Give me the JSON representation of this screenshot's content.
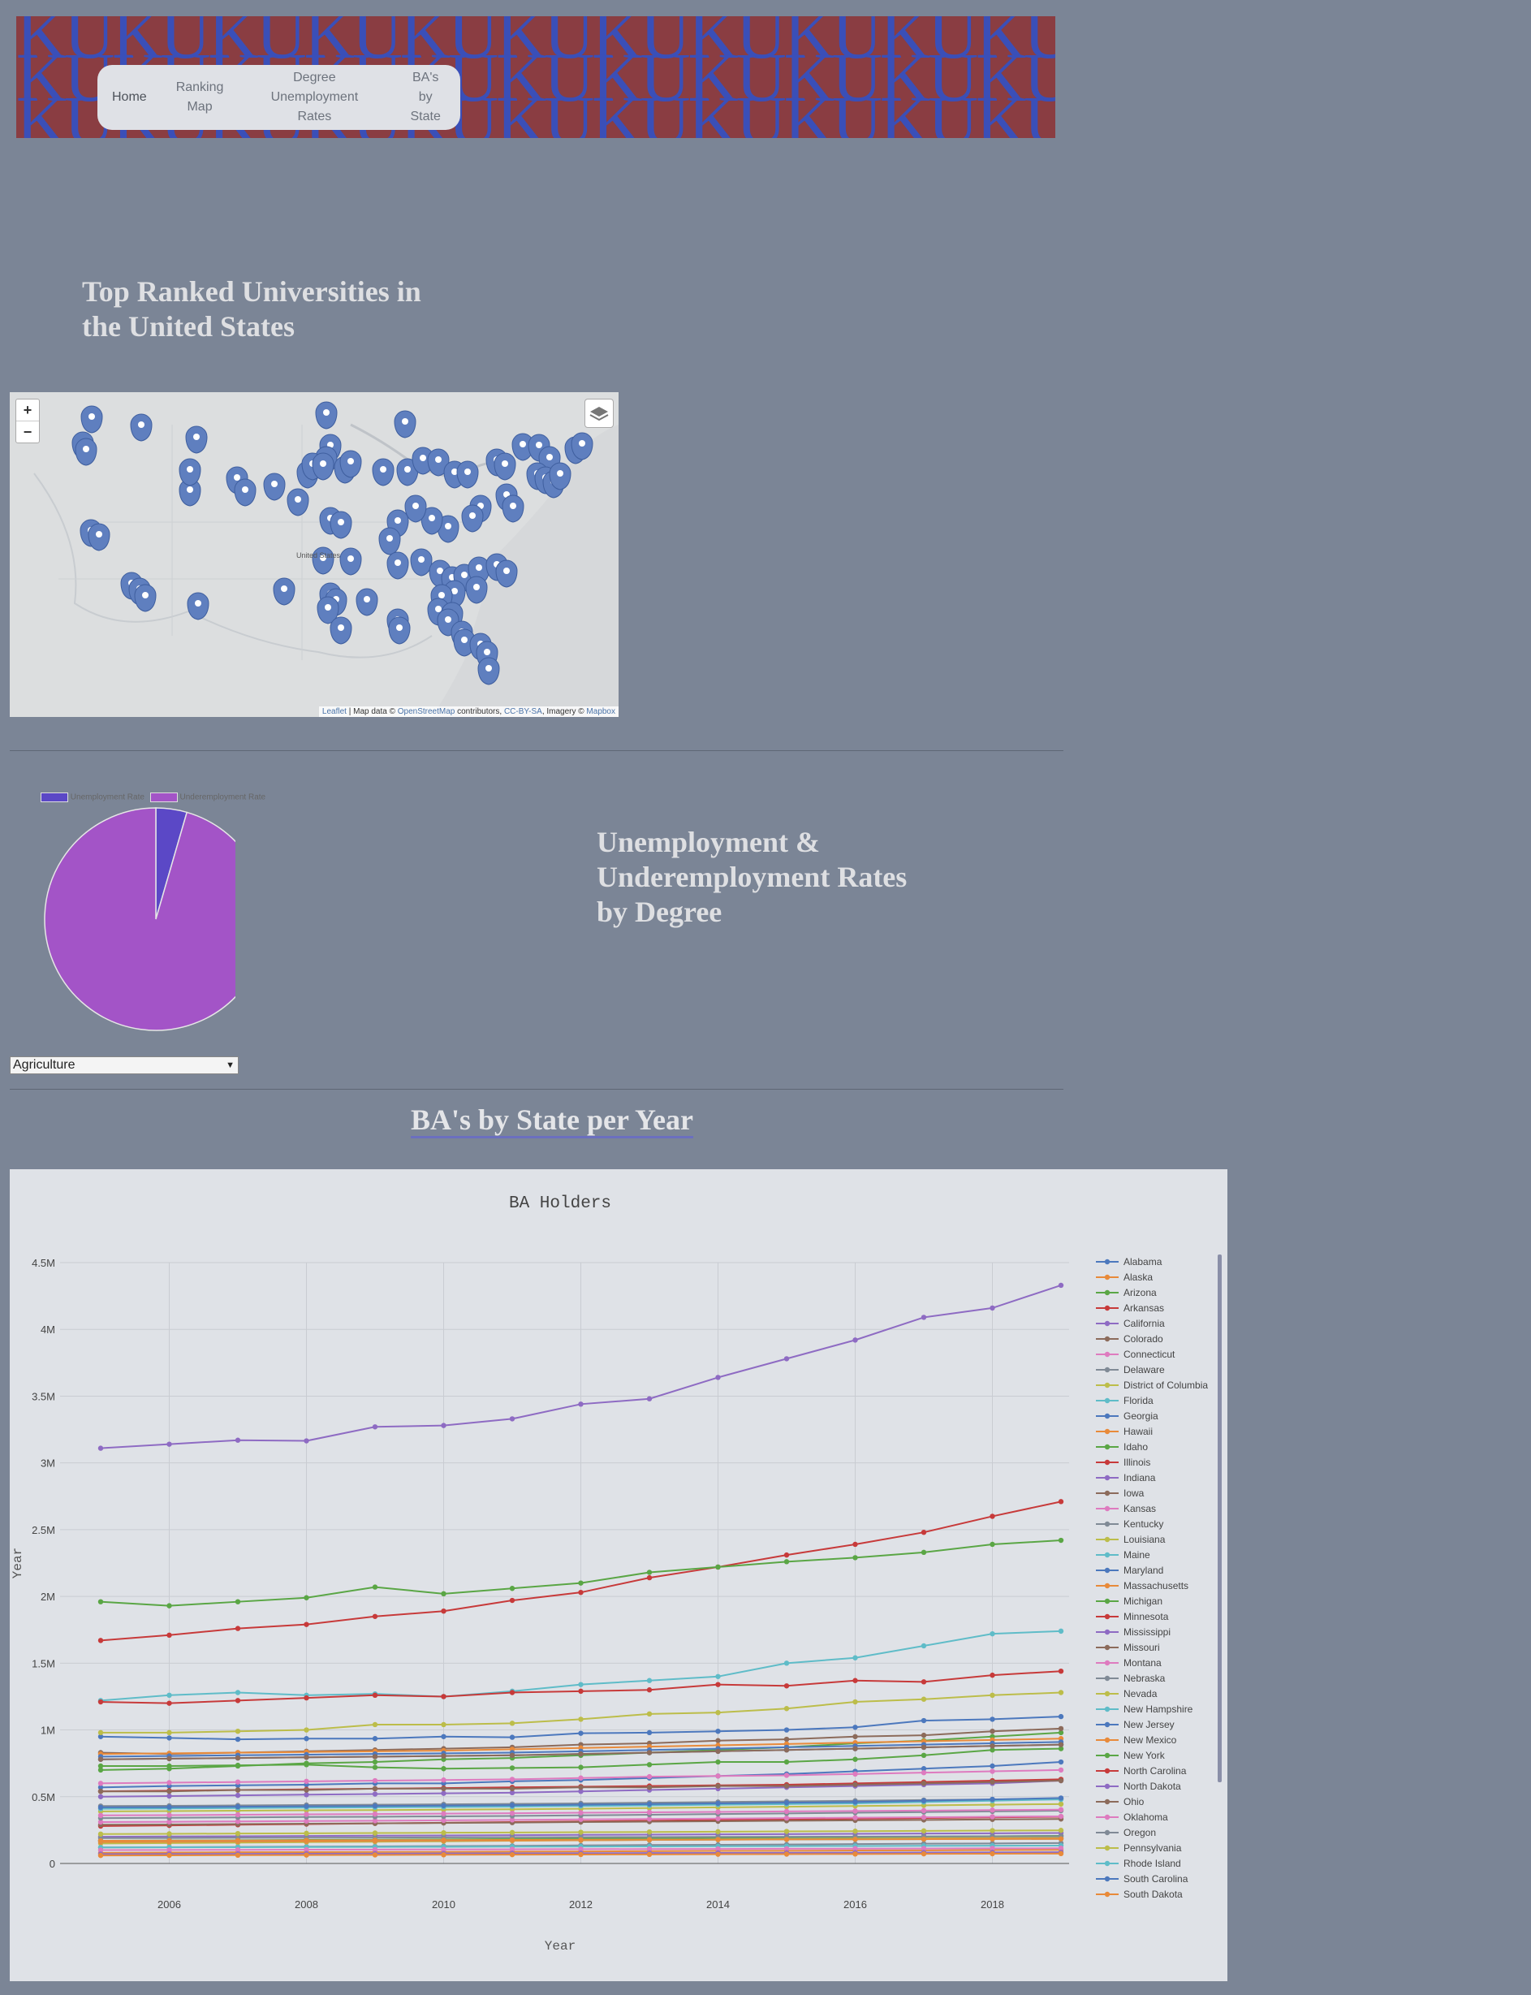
{
  "banner": {
    "pattern_text": "KUKUKUKUKUKUKUKUKUKUKUKUKUKUKUKUKUKUKUKUKUKUKUKU"
  },
  "nav": {
    "items": [
      {
        "line1": "Home",
        "line2": ""
      },
      {
        "line1": "Ranking",
        "line2": "Map"
      },
      {
        "line1": "Degree Unemployment",
        "line2": "Rates"
      },
      {
        "line1": "BA's by",
        "line2": "State"
      }
    ]
  },
  "ranking": {
    "title_line1": "Top Ranked Universities in",
    "title_line2": "the United States"
  },
  "map": {
    "zoom_in": "+",
    "zoom_out": "−",
    "label_country": "United States",
    "attribution": {
      "leaflet": "Leaflet",
      "text1": " | Map data © ",
      "osm": "OpenStreetMap",
      "text2": " contributors, ",
      "ccbysa": "CC-BY-SA",
      "text3": ", Imagery © ",
      "mapbox": "Mapbox"
    }
  },
  "unemployment": {
    "title_line1": "Unemployment &",
    "title_line2": "Underemployment Rates",
    "title_line3": "by Degree",
    "legend": [
      "Unemployment Rate",
      "Underemployment Rate"
    ],
    "select_value": "Agriculture"
  },
  "bas": {
    "title": "BA's by State per Year"
  },
  "colors": {
    "unemp": "#5b48c6",
    "underemp": "#a354c7"
  },
  "chart_data": [
    {
      "type": "pie",
      "categories": [
        "Unemployment Rate",
        "Underemployment Rate"
      ],
      "values": [
        4.5,
        95.5
      ]
    },
    {
      "type": "line",
      "title": "BA Holders",
      "xlabel": "Year",
      "ylabel": "Year",
      "xlim": [
        2005,
        2019
      ],
      "ylim": [
        0,
        4500000
      ],
      "x_ticks": [
        2006,
        2008,
        2010,
        2012,
        2014,
        2016,
        2018
      ],
      "y_ticks": [
        0,
        500000,
        1000000,
        1500000,
        2000000,
        2500000,
        3000000,
        3500000,
        4000000,
        4500000
      ],
      "y_tick_labels": [
        "0",
        "0.5M",
        "1M",
        "1.5M",
        "2M",
        "2.5M",
        "3M",
        "3.5M",
        "4M",
        "4.5M"
      ],
      "legend": "right",
      "x": [
        2005,
        2006,
        2007,
        2008,
        2009,
        2010,
        2011,
        2012,
        2013,
        2014,
        2015,
        2016,
        2017,
        2018,
        2019
      ],
      "series": [
        {
          "name": "Alabama",
          "values": [
            570000,
            580000,
            585000,
            590000,
            600000,
            600000,
            615000,
            625000,
            640000,
            655000,
            670000,
            690000,
            710000,
            730000,
            760000
          ]
        },
        {
          "name": "Alaska",
          "values": [
            80000,
            82000,
            84000,
            85000,
            86000,
            87000,
            89000,
            90000,
            92000,
            94000,
            95000,
            97000,
            98000,
            100000,
            102000
          ]
        },
        {
          "name": "Arizona",
          "values": [
            700000,
            710000,
            730000,
            750000,
            760000,
            780000,
            790000,
            810000,
            830000,
            850000,
            870000,
            900000,
            920000,
            950000,
            980000
          ]
        },
        {
          "name": "Arkansas",
          "values": [
            280000,
            285000,
            290000,
            295000,
            300000,
            305000,
            310000,
            315000,
            320000,
            325000,
            330000,
            335000,
            340000,
            345000,
            350000
          ]
        },
        {
          "name": "California",
          "values": [
            3110000,
            3140000,
            3170000,
            3165000,
            3270000,
            3280000,
            3330000,
            3440000,
            3480000,
            3640000,
            3780000,
            3920000,
            4090000,
            4160000,
            4330000
          ]
        },
        {
          "name": "Colorado",
          "values": [
            830000,
            820000,
            830000,
            840000,
            850000,
            860000,
            870000,
            890000,
            900000,
            920000,
            930000,
            950000,
            960000,
            990000,
            1010000
          ]
        },
        {
          "name": "Connecticut",
          "values": [
            600000,
            605000,
            610000,
            615000,
            620000,
            625000,
            630000,
            640000,
            650000,
            655000,
            660000,
            670000,
            680000,
            690000,
            700000
          ]
        },
        {
          "name": "Delaware",
          "values": [
            120000,
            122000,
            124000,
            126000,
            128000,
            130000,
            132000,
            135000,
            138000,
            140000,
            142000,
            145000,
            148000,
            150000,
            153000
          ]
        },
        {
          "name": "District of Columbia",
          "values": [
            150000,
            153000,
            156000,
            160000,
            163000,
            166000,
            170000,
            173000,
            176000,
            180000,
            183000,
            186000,
            190000,
            193000,
            196000
          ]
        },
        {
          "name": "Florida",
          "values": [
            1220000,
            1260000,
            1280000,
            1260000,
            1270000,
            1250000,
            1290000,
            1340000,
            1370000,
            1400000,
            1500000,
            1540000,
            1630000,
            1720000,
            1740000
          ]
        },
        {
          "name": "Georgia",
          "values": [
            950000,
            940000,
            930000,
            935000,
            935000,
            950000,
            945000,
            975000,
            980000,
            990000,
            1000000,
            1020000,
            1070000,
            1080000,
            1100000
          ]
        },
        {
          "name": "Hawaii",
          "values": [
            160000,
            162000,
            164000,
            166000,
            168000,
            170000,
            172000,
            174000,
            176000,
            178000,
            180000,
            182000,
            184000,
            186000,
            188000
          ]
        },
        {
          "name": "Idaho",
          "values": [
            170000,
            172000,
            174000,
            176000,
            178000,
            180000,
            183000,
            186000,
            189000,
            192000,
            195000,
            198000,
            201000,
            204000,
            207000
          ]
        },
        {
          "name": "Illinois",
          "values": [
            1670000,
            1710000,
            1760000,
            1790000,
            1850000,
            1890000,
            1970000,
            2030000,
            2140000,
            2220000,
            2310000,
            2390000,
            2480000,
            2600000,
            2710000
          ]
        },
        {
          "name": "Indiana",
          "values": [
            500000,
            505000,
            510000,
            515000,
            520000,
            525000,
            530000,
            540000,
            550000,
            560000,
            570000,
            580000,
            590000,
            600000,
            620000
          ]
        },
        {
          "name": "Iowa",
          "values": [
            290000,
            292000,
            295000,
            298000,
            300000,
            303000,
            306000,
            310000,
            313000,
            316000,
            320000,
            323000,
            326000,
            330000,
            333000
          ]
        },
        {
          "name": "Kansas",
          "values": [
            310000,
            312000,
            315000,
            318000,
            320000,
            323000,
            326000,
            330000,
            333000,
            336000,
            340000,
            343000,
            346000,
            350000,
            353000
          ]
        },
        {
          "name": "Kentucky",
          "values": [
            340000,
            342000,
            345000,
            348000,
            350000,
            353000,
            356000,
            360000,
            365000,
            370000,
            375000,
            380000,
            385000,
            390000,
            395000
          ]
        },
        {
          "name": "Louisiana",
          "values": [
            390000,
            392000,
            395000,
            398000,
            400000,
            403000,
            406000,
            410000,
            415000,
            420000,
            425000,
            430000,
            435000,
            440000,
            445000
          ]
        },
        {
          "name": "Maine",
          "values": [
            120000,
            121000,
            122000,
            123000,
            124000,
            125000,
            126000,
            127000,
            128000,
            129000,
            130000,
            131000,
            132000,
            133000,
            134000
          ]
        },
        {
          "name": "Maryland",
          "values": [
            780000,
            785000,
            790000,
            795000,
            800000,
            805000,
            810000,
            820000,
            830000,
            840000,
            850000,
            860000,
            870000,
            880000,
            890000
          ]
        },
        {
          "name": "Massachusetts",
          "values": [
            820000,
            825000,
            830000,
            835000,
            840000,
            845000,
            855000,
            865000,
            875000,
            885000,
            895000,
            905000,
            915000,
            925000,
            935000
          ]
        },
        {
          "name": "Michigan",
          "values": [
            730000,
            730000,
            735000,
            740000,
            720000,
            710000,
            715000,
            720000,
            740000,
            760000,
            760000,
            780000,
            810000,
            850000,
            860000
          ]
        },
        {
          "name": "Minnesota",
          "values": [
            540000,
            545000,
            550000,
            555000,
            560000,
            565000,
            570000,
            575000,
            580000,
            585000,
            590000,
            600000,
            610000,
            620000,
            630000
          ]
        },
        {
          "name": "Mississippi",
          "values": [
            200000,
            202000,
            204000,
            206000,
            208000,
            210000,
            212000,
            214000,
            216000,
            218000,
            220000,
            222000,
            224000,
            226000,
            228000
          ]
        },
        {
          "name": "Missouri",
          "values": [
            540000,
            540000,
            550000,
            550000,
            560000,
            560000,
            560000,
            570000,
            570000,
            580000,
            580000,
            590000,
            600000,
            610000,
            620000
          ]
        },
        {
          "name": "Montana",
          "values": [
            100000,
            101000,
            102000,
            103000,
            104000,
            105000,
            106000,
            107000,
            108000,
            109000,
            110000,
            111000,
            112000,
            113000,
            114000
          ]
        },
        {
          "name": "Nebraska",
          "values": [
            190000,
            191000,
            192000,
            193000,
            194000,
            195000,
            196000,
            197000,
            198000,
            199000,
            200000,
            201000,
            202000,
            203000,
            204000
          ]
        },
        {
          "name": "Nevada",
          "values": [
            220000,
            222000,
            224000,
            226000,
            228000,
            230000,
            232000,
            234000,
            236000,
            238000,
            240000,
            242000,
            244000,
            246000,
            248000
          ]
        },
        {
          "name": "New Hampshire",
          "values": [
            170000,
            171000,
            172000,
            173000,
            174000,
            175000,
            176000,
            177000,
            178000,
            179000,
            180000,
            181000,
            182000,
            183000,
            184000
          ]
        },
        {
          "name": "New Jersey",
          "values": [
            800000,
            805000,
            810000,
            815000,
            820000,
            825000,
            830000,
            840000,
            850000,
            860000,
            870000,
            880000,
            890000,
            900000,
            910000
          ]
        },
        {
          "name": "New Mexico",
          "values": [
            170000,
            171000,
            172000,
            173000,
            174000,
            175000,
            176000,
            177000,
            178000,
            179000,
            180000,
            181000,
            182000,
            183000,
            184000
          ]
        },
        {
          "name": "New York",
          "values": [
            1960000,
            1930000,
            1960000,
            1990000,
            2070000,
            2020000,
            2060000,
            2100000,
            2180000,
            2220000,
            2260000,
            2290000,
            2330000,
            2390000,
            2420000
          ]
        },
        {
          "name": "North Carolina",
          "values": [
            1210000,
            1200000,
            1220000,
            1240000,
            1260000,
            1250000,
            1280000,
            1290000,
            1300000,
            1340000,
            1330000,
            1370000,
            1360000,
            1410000,
            1440000
          ]
        },
        {
          "name": "North Dakota",
          "values": [
            70000,
            71000,
            72000,
            73000,
            74000,
            75000,
            76000,
            77000,
            78000,
            79000,
            80000,
            81000,
            82000,
            83000,
            84000
          ]
        },
        {
          "name": "Ohio",
          "values": [
            780000,
            785000,
            790000,
            795000,
            800000,
            805000,
            810000,
            820000,
            830000,
            840000,
            850000,
            860000,
            870000,
            880000,
            890000
          ]
        },
        {
          "name": "Oklahoma",
          "values": [
            360000,
            362000,
            365000,
            368000,
            370000,
            373000,
            376000,
            380000,
            383000,
            386000,
            390000,
            393000,
            396000,
            400000,
            403000
          ]
        },
        {
          "name": "Oregon",
          "values": [
            430000,
            432000,
            435000,
            438000,
            440000,
            443000,
            446000,
            450000,
            455000,
            460000,
            465000,
            470000,
            475000,
            480000,
            485000
          ]
        },
        {
          "name": "Pennsylvania",
          "values": [
            980000,
            980000,
            990000,
            1000000,
            1040000,
            1040000,
            1050000,
            1080000,
            1120000,
            1130000,
            1160000,
            1210000,
            1230000,
            1260000,
            1280000
          ]
        },
        {
          "name": "Rhode Island",
          "values": [
            410000,
            412000,
            415000,
            418000,
            420000,
            423000,
            426000,
            430000,
            435000,
            440000,
            445000,
            450000,
            460000,
            470000,
            480000
          ]
        },
        {
          "name": "South Carolina",
          "values": [
            420000,
            422000,
            425000,
            428000,
            430000,
            433000,
            436000,
            440000,
            445000,
            450000,
            455000,
            460000,
            470000,
            480000,
            490000
          ]
        },
        {
          "name": "South Dakota",
          "values": [
            60000,
            61000,
            62000,
            63000,
            64000,
            65000,
            66000,
            67000,
            68000,
            69000,
            70000,
            71000,
            72000,
            73000,
            74000
          ]
        }
      ]
    }
  ]
}
